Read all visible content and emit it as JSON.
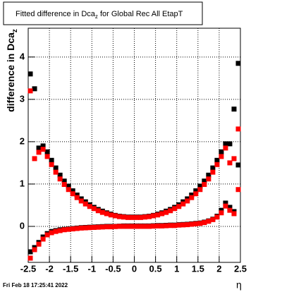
{
  "chart_data": {
    "type": "scatter",
    "title": [
      "Fitted difference in Dca",
      "z",
      " for Global Rec All EtapT"
    ],
    "y_label": [
      "difference in Dca",
      "z"
    ],
    "x_label": "η",
    "footer": "Fri Feb 18 17:25:41 2022",
    "x": [
      -2.45,
      -2.35,
      -2.25,
      -2.15,
      -2.05,
      -1.95,
      -1.85,
      -1.75,
      -1.65,
      -1.55,
      -1.45,
      -1.35,
      -1.25,
      -1.15,
      -1.05,
      -0.95,
      -0.85,
      -0.75,
      -0.65,
      -0.55,
      -0.45,
      -0.35,
      -0.25,
      -0.15,
      -0.05,
      0.05,
      0.15,
      0.25,
      0.35,
      0.45,
      0.55,
      0.65,
      0.75,
      0.85,
      0.95,
      1.05,
      1.15,
      1.25,
      1.35,
      1.45,
      1.55,
      1.65,
      1.75,
      1.85,
      1.95,
      2.05,
      2.15,
      2.25,
      2.35,
      2.45
    ],
    "series": [
      {
        "color": "#000000",
        "values": [
          3.6,
          3.25,
          1.85,
          1.9,
          1.76,
          1.56,
          1.38,
          1.21,
          1.07,
          0.95,
          0.84,
          0.74,
          0.65,
          0.58,
          0.51,
          0.45,
          0.4,
          0.36,
          0.32,
          0.29,
          0.26,
          0.24,
          0.23,
          0.22,
          0.22,
          0.22,
          0.22,
          0.23,
          0.24,
          0.26,
          0.29,
          0.32,
          0.36,
          0.4,
          0.45,
          0.51,
          0.58,
          0.65,
          0.74,
          0.84,
          0.95,
          1.07,
          1.21,
          1.38,
          1.56,
          1.76,
          1.95,
          1.95,
          2.77,
          3.85
        ]
      },
      {
        "color": "#ff0000",
        "values": [
          3.2,
          1.6,
          1.75,
          1.82,
          1.65,
          1.46,
          1.28,
          1.12,
          0.99,
          0.87,
          0.77,
          0.68,
          0.6,
          0.53,
          0.47,
          0.42,
          0.37,
          0.33,
          0.3,
          0.27,
          0.25,
          0.23,
          0.22,
          0.21,
          0.21,
          0.21,
          0.21,
          0.22,
          0.23,
          0.25,
          0.27,
          0.3,
          0.33,
          0.37,
          0.42,
          0.47,
          0.53,
          0.6,
          0.68,
          0.77,
          0.87,
          0.99,
          1.12,
          1.28,
          1.46,
          1.65,
          1.85,
          1.5,
          1.6,
          2.3
        ]
      },
      {
        "color": "#000000",
        "values": [
          -0.6,
          -0.5,
          -0.38,
          -0.25,
          -0.17,
          -0.12,
          -0.1,
          -0.08,
          -0.07,
          -0.06,
          -0.05,
          -0.04,
          -0.03,
          -0.025,
          -0.02,
          -0.015,
          -0.01,
          -0.005,
          0,
          0,
          0,
          0.005,
          0.01,
          0.01,
          0.01,
          0.01,
          0.01,
          0.01,
          0.01,
          0.015,
          0.02,
          0.02,
          0.025,
          0.03,
          0.03,
          0.04,
          0.045,
          0.05,
          0.06,
          0.07,
          0.08,
          0.1,
          0.13,
          0.17,
          0.24,
          0.38,
          0.55,
          0.45,
          0.35,
          1.45
        ]
      },
      {
        "color": "#ff0000",
        "values": [
          -0.75,
          -0.55,
          -0.42,
          -0.3,
          -0.2,
          -0.15,
          -0.12,
          -0.1,
          -0.08,
          -0.07,
          -0.06,
          -0.05,
          -0.04,
          -0.035,
          -0.03,
          -0.025,
          -0.02,
          -0.015,
          -0.01,
          -0.01,
          -0.005,
          0,
          0,
          0,
          0,
          0,
          0,
          0,
          0,
          0.005,
          0.01,
          0.01,
          0.015,
          0.02,
          0.02,
          0.03,
          0.035,
          0.04,
          0.05,
          0.06,
          0.07,
          0.09,
          0.12,
          0.16,
          0.22,
          0.32,
          0.48,
          0.38,
          0.3,
          0.87
        ]
      }
    ],
    "xlim": [
      -2.5,
      2.5
    ],
    "ylim": [
      -0.85,
      4.68
    ],
    "xticks": [
      -2.5,
      -2,
      -1.5,
      -1,
      -0.5,
      0,
      0.5,
      1,
      1.5,
      2,
      2.5
    ],
    "yticks": [
      0,
      1,
      2,
      3,
      4
    ],
    "grid": true
  }
}
